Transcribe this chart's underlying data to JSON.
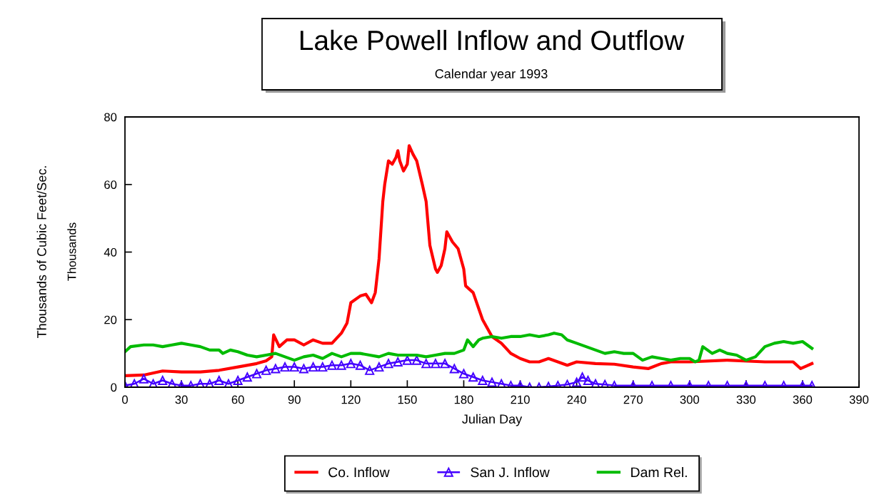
{
  "chart_data": {
    "type": "line",
    "title": "Lake Powell Inflow and Outflow",
    "subtitle": "Calendar year 1993",
    "xlabel": "Julian Day",
    "ylabel": "Thousands of Cubic Feet/Sec.",
    "annotations": [
      "Thousands"
    ],
    "xlim": [
      0,
      390
    ],
    "ylim": [
      0,
      80
    ],
    "xticks": [
      0,
      30,
      60,
      90,
      120,
      150,
      180,
      210,
      240,
      270,
      300,
      330,
      360,
      390
    ],
    "yticks": [
      0,
      20,
      40,
      60,
      80
    ],
    "grid": false,
    "legend": "bottom",
    "line_style": "solid",
    "series": [
      {
        "name": "Co. Inflow",
        "color": "#ff0000",
        "marker": "none",
        "x": [
          0,
          10,
          20,
          30,
          40,
          50,
          60,
          70,
          75,
          78,
          79,
          82,
          86,
          90,
          95,
          100,
          105,
          110,
          115,
          118,
          120,
          125,
          128,
          131,
          133,
          135,
          137,
          138,
          140,
          142,
          144,
          145,
          146,
          148,
          150,
          151,
          153,
          155,
          158,
          160,
          162,
          165,
          166,
          168,
          170,
          171,
          174,
          177,
          180,
          181,
          185,
          190,
          195,
          200,
          205,
          210,
          215,
          220,
          225,
          230,
          235,
          240,
          250,
          260,
          270,
          278,
          285,
          290,
          300,
          320,
          340,
          355,
          359,
          365
        ],
        "values": [
          3.4,
          3.6,
          4.8,
          4.5,
          4.5,
          5,
          6,
          7,
          7.8,
          9,
          15.5,
          12,
          14,
          14,
          12.5,
          14,
          13,
          13,
          16,
          19,
          25,
          27,
          27.5,
          25,
          28,
          38,
          55,
          60,
          67,
          66,
          68,
          70,
          67,
          64,
          66,
          71.5,
          69,
          67,
          60,
          55,
          42,
          35,
          34,
          36,
          41,
          46,
          43,
          41,
          35,
          30,
          28,
          20,
          15,
          13,
          10,
          8.5,
          7.5,
          7.5,
          8.5,
          7.5,
          6.5,
          7.5,
          7,
          6.8,
          6,
          5.5,
          7,
          7.5,
          7.5,
          8,
          7.5,
          7.5,
          5.5,
          7
        ]
      },
      {
        "name": "San J. Inflow",
        "color": "#4400ff",
        "marker": "triangle",
        "x": [
          0,
          5,
          10,
          15,
          20,
          25,
          30,
          35,
          40,
          45,
          50,
          55,
          60,
          65,
          70,
          75,
          80,
          85,
          90,
          95,
          100,
          105,
          110,
          115,
          120,
          125,
          130,
          135,
          140,
          145,
          150,
          155,
          160,
          165,
          170,
          175,
          180,
          185,
          190,
          195,
          200,
          205,
          210,
          215,
          220,
          225,
          230,
          235,
          240,
          243,
          246,
          250,
          255,
          260,
          270,
          280,
          290,
          300,
          310,
          320,
          330,
          340,
          350,
          360,
          365
        ],
        "values": [
          0.5,
          1,
          2.5,
          1,
          2,
          1,
          0.5,
          0.5,
          1,
          1,
          2,
          1,
          2,
          3,
          4,
          5,
          5.5,
          6,
          6,
          5.5,
          6,
          6,
          6.5,
          6.5,
          7,
          6.5,
          5,
          6,
          7,
          7.5,
          8,
          8,
          7,
          7,
          7,
          5.5,
          4,
          3,
          2,
          1.5,
          1,
          0.5,
          0.5,
          0,
          0,
          0.2,
          0.5,
          0.8,
          1.5,
          3,
          2,
          1,
          0.8,
          0.5,
          0.5,
          0.5,
          0.5,
          0.5,
          0.5,
          0.5,
          0.5,
          0.5,
          0.5,
          0.5,
          0.5
        ]
      },
      {
        "name": "Dam Rel.",
        "color": "#00bb00",
        "marker": "none",
        "x": [
          0,
          3,
          10,
          15,
          20,
          25,
          30,
          35,
          40,
          45,
          50,
          52,
          56,
          60,
          65,
          70,
          75,
          80,
          85,
          90,
          95,
          100,
          105,
          110,
          115,
          120,
          125,
          130,
          135,
          140,
          145,
          150,
          155,
          160,
          165,
          170,
          175,
          180,
          182,
          185,
          188,
          190,
          195,
          200,
          205,
          210,
          215,
          220,
          225,
          228,
          232,
          235,
          240,
          245,
          250,
          255,
          260,
          265,
          270,
          275,
          280,
          285,
          290,
          295,
          300,
          303,
          305,
          307,
          312,
          316,
          320,
          325,
          330,
          335,
          340,
          345,
          350,
          355,
          360,
          365
        ],
        "values": [
          10.5,
          12,
          12.5,
          12.5,
          12,
          12.5,
          13,
          12.5,
          12,
          11,
          11,
          10,
          11,
          10.5,
          9.5,
          9,
          9.5,
          10,
          9,
          8,
          9,
          9.5,
          8.5,
          10,
          9,
          10,
          10,
          9.5,
          9,
          10,
          9.5,
          9.5,
          9.5,
          9,
          9.5,
          10,
          10,
          11,
          14,
          12,
          14,
          14.5,
          15,
          14.5,
          15,
          15,
          15.5,
          15,
          15.5,
          16,
          15.5,
          14,
          13,
          12,
          11,
          10,
          10.5,
          10,
          10,
          8,
          9,
          8.5,
          8,
          8.5,
          8.5,
          7.5,
          8,
          12,
          10,
          11,
          10,
          9.5,
          8,
          9,
          12,
          13,
          13.5,
          13,
          13.5,
          11.5
        ]
      }
    ]
  }
}
